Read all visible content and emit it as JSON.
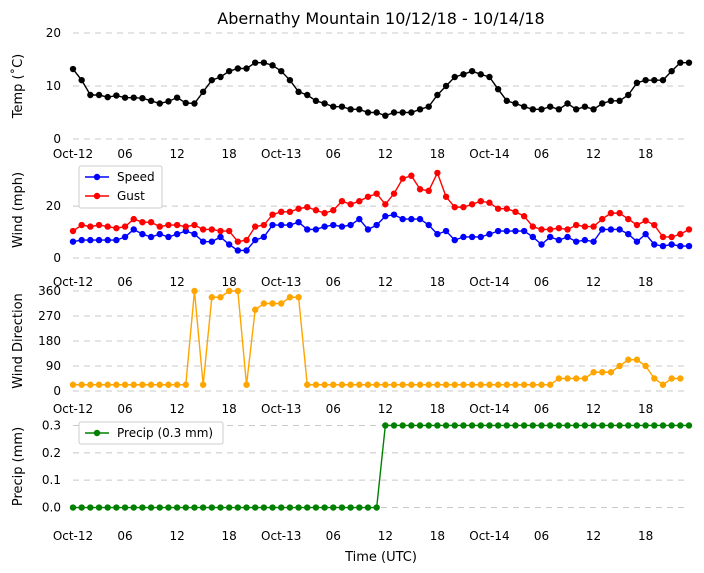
{
  "title": "Abernathy Mountain 10/12/18 - 10/14/18",
  "xlabel": "Time (UTC)",
  "xticks": [
    "Oct-12",
    "06",
    "12",
    "18",
    "Oct-13",
    "06",
    "12",
    "18",
    "Oct-14",
    "06",
    "12",
    "18"
  ],
  "chart_data": [
    {
      "type": "line",
      "ylabel": "Temp (˚C)",
      "ylim": [
        0,
        20
      ],
      "yticks": [
        "0",
        "10",
        "20"
      ],
      "x_hours": [
        0,
        1,
        2,
        3,
        4,
        5,
        6,
        7,
        8,
        9,
        10,
        11,
        12,
        13,
        14,
        15,
        16,
        17,
        18,
        19,
        20,
        21,
        22,
        23,
        24,
        25,
        26,
        27,
        28,
        29,
        30,
        31,
        32,
        33,
        34,
        35,
        36,
        37,
        38,
        39,
        40,
        41,
        42,
        43,
        44,
        45,
        46,
        47,
        48,
        49,
        50,
        51,
        52,
        53,
        54,
        55,
        56,
        57,
        58,
        59,
        60,
        61,
        62,
        63,
        64,
        65,
        66,
        67,
        68,
        69,
        70,
        71
      ],
      "series": [
        {
          "name": "Temp",
          "color": "#000000",
          "values": [
            13.2,
            11.1,
            8.3,
            8.3,
            7.9,
            8.2,
            7.8,
            7.8,
            7.7,
            7.2,
            6.7,
            7.1,
            7.8,
            6.8,
            6.7,
            8.9,
            11.1,
            11.7,
            12.8,
            13.3,
            13.3,
            14.4,
            14.4,
            13.9,
            12.8,
            11.1,
            8.9,
            8.3,
            7.2,
            6.7,
            6.1,
            6.1,
            5.6,
            5.6,
            5.0,
            5.0,
            4.4,
            5.0,
            5.0,
            5.0,
            5.6,
            6.1,
            8.3,
            10.0,
            11.7,
            12.2,
            12.8,
            12.2,
            11.7,
            9.4,
            7.2,
            6.7,
            6.1,
            5.6,
            5.6,
            6.1,
            5.6,
            6.7,
            5.6,
            6.1,
            5.6,
            6.7,
            7.2,
            7.2,
            8.3,
            10.6,
            11.1,
            11.1,
            11.1,
            12.8,
            14.4,
            14.4
          ]
        }
      ]
    },
    {
      "type": "line",
      "ylabel": "Wind (mph)",
      "ylim": [
        0,
        37
      ],
      "yticks": [
        "0",
        "20"
      ],
      "legend": "top-left",
      "x_hours": [
        0,
        1,
        2,
        3,
        4,
        5,
        6,
        7,
        8,
        9,
        10,
        11,
        12,
        13,
        14,
        15,
        16,
        17,
        18,
        19,
        20,
        21,
        22,
        23,
        24,
        25,
        26,
        27,
        28,
        29,
        30,
        31,
        32,
        33,
        34,
        35,
        36,
        37,
        38,
        39,
        40,
        41,
        42,
        43,
        44,
        45,
        46,
        47,
        48,
        49,
        50,
        51,
        52,
        53,
        54,
        55,
        56,
        57,
        58,
        59,
        60,
        61,
        62,
        63,
        64,
        65,
        66,
        67,
        68,
        69,
        70,
        71
      ],
      "series": [
        {
          "name": "Speed",
          "color": "#0000ff",
          "values": [
            6.3,
            6.9,
            6.9,
            6.9,
            6.9,
            6.9,
            8.1,
            11.0,
            9.2,
            8.1,
            9.2,
            8.1,
            9.2,
            10.4,
            9.2,
            6.3,
            6.3,
            8.1,
            5.2,
            2.9,
            2.9,
            6.9,
            8.1,
            12.7,
            12.7,
            12.7,
            13.8,
            11.0,
            11.0,
            12.1,
            12.7,
            12.1,
            12.7,
            15.0,
            11.0,
            12.7,
            16.1,
            16.7,
            15.0,
            15.0,
            15.0,
            12.7,
            9.2,
            10.4,
            6.9,
            8.1,
            8.1,
            8.1,
            9.2,
            10.4,
            10.4,
            10.4,
            10.4,
            8.1,
            5.2,
            8.1,
            6.9,
            8.1,
            6.3,
            6.9,
            6.3,
            11.0,
            11.0,
            11.0,
            9.2,
            6.3,
            9.2,
            5.2,
            4.6,
            5.2,
            4.6,
            4.6
          ]
        },
        {
          "name": "Gust",
          "color": "#ff0000",
          "values": [
            10.4,
            12.7,
            12.1,
            12.7,
            12.1,
            11.5,
            12.1,
            15.0,
            13.8,
            13.8,
            12.1,
            12.7,
            12.7,
            12.1,
            12.7,
            11.0,
            11.0,
            10.4,
            10.4,
            6.3,
            6.9,
            12.1,
            12.7,
            16.7,
            17.8,
            17.8,
            19.0,
            19.6,
            18.4,
            17.3,
            18.4,
            21.9,
            20.7,
            21.9,
            23.6,
            24.8,
            20.7,
            24.8,
            30.6,
            31.7,
            26.5,
            25.9,
            32.8,
            23.6,
            19.6,
            19.6,
            20.7,
            21.9,
            21.3,
            19.0,
            19.0,
            17.8,
            16.1,
            12.1,
            11.0,
            11.0,
            11.5,
            11.0,
            12.7,
            12.1,
            12.1,
            15.0,
            17.3,
            17.3,
            15.0,
            12.7,
            14.4,
            12.7,
            8.1,
            8.1,
            9.2,
            11.0
          ]
        }
      ]
    },
    {
      "type": "scatter",
      "ylabel": "Wind Direction",
      "ylim": [
        0,
        360
      ],
      "yticks": [
        "0",
        "90",
        "180",
        "270",
        "360"
      ],
      "x_hours": [
        0,
        1,
        2,
        3,
        4,
        5,
        6,
        7,
        8,
        9,
        10,
        11,
        12,
        13,
        14,
        15,
        16,
        17,
        18,
        19,
        20,
        21,
        22,
        23,
        24,
        25,
        26,
        27,
        28,
        29,
        30,
        31,
        32,
        33,
        34,
        35,
        36,
        37,
        38,
        39,
        40,
        41,
        42,
        43,
        44,
        45,
        46,
        47,
        48,
        49,
        50,
        51,
        52,
        53,
        54,
        55,
        56,
        57,
        58,
        59,
        60,
        61,
        62,
        63,
        64,
        65,
        66,
        67,
        68,
        69,
        70,
        71
      ],
      "series": [
        {
          "name": "Direction",
          "color": "#ffa500",
          "values": [
            22.5,
            22.5,
            22.5,
            22.5,
            22.5,
            22.5,
            22.5,
            22.5,
            22.5,
            22.5,
            22.5,
            22.5,
            22.5,
            22.5,
            360,
            22.5,
            337.5,
            337.5,
            360,
            360,
            22.5,
            292.5,
            315,
            315,
            315,
            337.5,
            337.5,
            22.5,
            22.5,
            22.5,
            22.5,
            22.5,
            22.5,
            22.5,
            22.5,
            22.5,
            22.5,
            22.5,
            22.5,
            22.5,
            22.5,
            22.5,
            22.5,
            22.5,
            22.5,
            22.5,
            22.5,
            22.5,
            22.5,
            22.5,
            22.5,
            22.5,
            22.5,
            22.5,
            22.5,
            22.5,
            45,
            45,
            45,
            45,
            67.5,
            67.5,
            67.5,
            90,
            112.5,
            112.5,
            90,
            45,
            22.5,
            45,
            45
          ]
        }
      ]
    },
    {
      "type": "line",
      "ylabel": "Precip (mm)",
      "ylim": [
        -0.02,
        0.32
      ],
      "yticks": [
        "0.0",
        "0.1",
        "0.2",
        "0.3"
      ],
      "legend": "top-left",
      "x_hours": [
        0,
        1,
        2,
        3,
        4,
        5,
        6,
        7,
        8,
        9,
        10,
        11,
        12,
        13,
        14,
        15,
        16,
        17,
        18,
        19,
        20,
        21,
        22,
        23,
        24,
        25,
        26,
        27,
        28,
        29,
        30,
        31,
        32,
        33,
        34,
        35,
        36,
        37,
        38,
        39,
        40,
        41,
        42,
        43,
        44,
        45,
        46,
        47,
        48,
        49,
        50,
        51,
        52,
        53,
        54,
        55,
        56,
        57,
        58,
        59,
        60,
        61,
        62,
        63,
        64,
        65,
        66,
        67,
        68,
        69,
        70,
        71
      ],
      "series": [
        {
          "name": "Precip (0.3 mm)",
          "color": "#008000",
          "values": [
            0,
            0,
            0,
            0,
            0,
            0,
            0,
            0,
            0,
            0,
            0,
            0,
            0,
            0,
            0,
            0,
            0,
            0,
            0,
            0,
            0,
            0,
            0,
            0,
            0,
            0,
            0,
            0,
            0,
            0,
            0,
            0,
            0,
            0,
            0,
            0,
            0.3,
            0.3,
            0.3,
            0.3,
            0.3,
            0.3,
            0.3,
            0.3,
            0.3,
            0.3,
            0.3,
            0.3,
            0.3,
            0.3,
            0.3,
            0.3,
            0.3,
            0.3,
            0.3,
            0.3,
            0.3,
            0.3,
            0.3,
            0.3,
            0.3,
            0.3,
            0.3,
            0.3,
            0.3,
            0.3,
            0.3,
            0.3,
            0.3,
            0.3,
            0.3,
            0.3
          ]
        }
      ]
    }
  ]
}
